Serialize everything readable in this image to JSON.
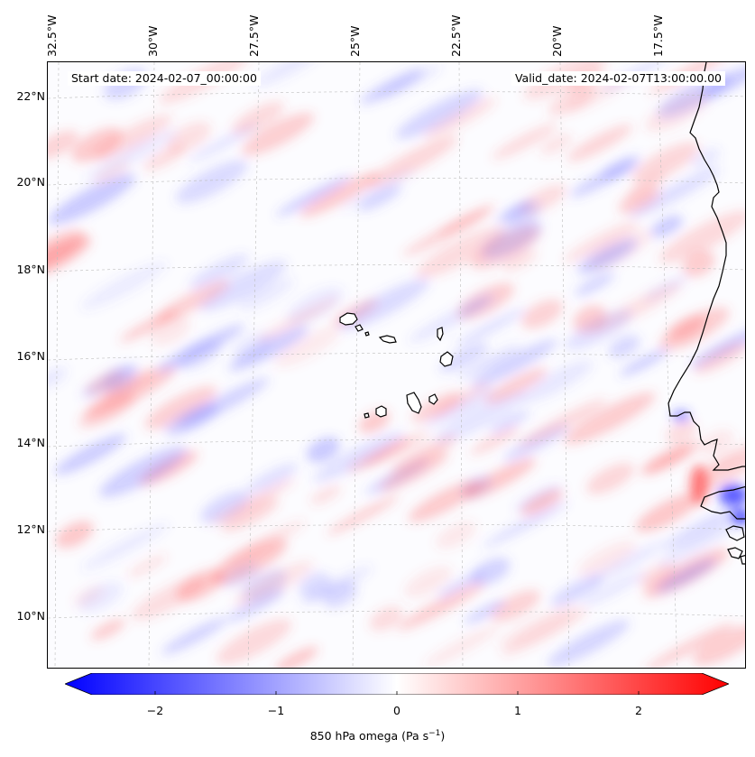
{
  "header": {
    "start_date": "Start date: 2024-02-07_00:00:00",
    "valid_date": "Valid_date: 2024-02-07T13:00:00.00"
  },
  "axes": {
    "longitude_labels": [
      "32.5°W",
      "30°W",
      "27.5°W",
      "25°W",
      "22.5°W",
      "20°W",
      "17.5°W"
    ],
    "latitude_labels": [
      "22°N",
      "20°N",
      "18°N",
      "16°N",
      "14°N",
      "12°N",
      "10°N"
    ]
  },
  "colorbar": {
    "ticks": [
      "−2",
      "−1",
      "0",
      "1",
      "2"
    ],
    "label_main": "850 hPa omega (Pa s",
    "label_exp": "−1",
    "label_end": ")",
    "min": -2.6,
    "max": 2.6,
    "colors": {
      "negative": "#0000ff",
      "zero": "#ffffff",
      "positive": "#ff0000"
    }
  },
  "map": {
    "field": "850 hPa omega",
    "islands": [
      "Santo Antão",
      "São Vicente",
      "São Nicolau",
      "Sal",
      "Boa Vista",
      "Maio",
      "Santiago",
      "Fogo",
      "Brava"
    ]
  }
}
